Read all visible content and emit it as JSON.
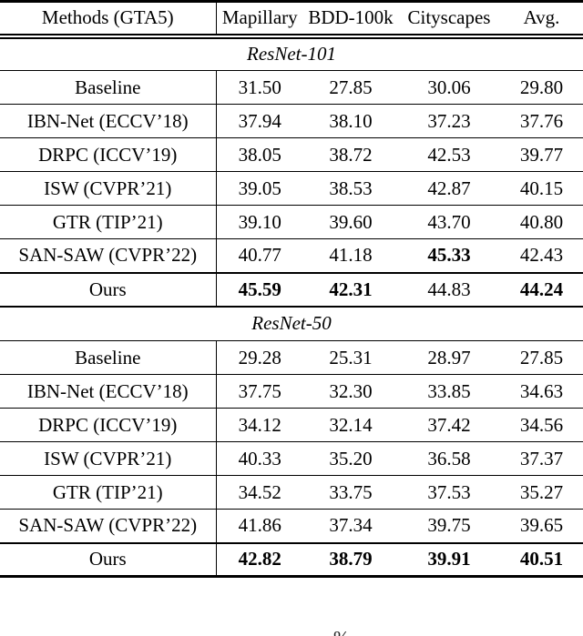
{
  "table": {
    "header": {
      "method_col": "Methods (GTA5)",
      "columns": [
        "Mapillary",
        "BDD-100k",
        "Cityscapes",
        "Avg."
      ]
    },
    "sections": [
      {
        "title": "ResNet-101",
        "rows": [
          {
            "method": "Baseline",
            "values": [
              "31.50",
              "27.85",
              "30.06",
              "29.80"
            ],
            "bold": [
              0,
              0,
              0,
              0
            ]
          },
          {
            "method": "IBN-Net (ECCV’18)",
            "values": [
              "37.94",
              "38.10",
              "37.23",
              "37.76"
            ],
            "bold": [
              0,
              0,
              0,
              0
            ]
          },
          {
            "method": "DRPC (ICCV’19)",
            "values": [
              "38.05",
              "38.72",
              "42.53",
              "39.77"
            ],
            "bold": [
              0,
              0,
              0,
              0
            ]
          },
          {
            "method": "ISW (CVPR’21)",
            "values": [
              "39.05",
              "38.53",
              "42.87",
              "40.15"
            ],
            "bold": [
              0,
              0,
              0,
              0
            ]
          },
          {
            "method": "GTR (TIP’21)",
            "values": [
              "39.10",
              "39.60",
              "43.70",
              "40.80"
            ],
            "bold": [
              0,
              0,
              0,
              0
            ]
          },
          {
            "method": "SAN-SAW (CVPR’22)",
            "values": [
              "40.77",
              "41.18",
              "45.33",
              "42.43"
            ],
            "bold": [
              0,
              0,
              1,
              0
            ]
          },
          {
            "method": "Ours",
            "values": [
              "45.59",
              "42.31",
              "44.83",
              "44.24"
            ],
            "bold": [
              1,
              1,
              0,
              1
            ]
          }
        ]
      },
      {
        "title": "ResNet-50",
        "rows": [
          {
            "method": "Baseline",
            "values": [
              "29.28",
              "25.31",
              "28.97",
              "27.85"
            ],
            "bold": [
              0,
              0,
              0,
              0
            ]
          },
          {
            "method": "IBN-Net (ECCV’18)",
            "values": [
              "37.75",
              "32.30",
              "33.85",
              "34.63"
            ],
            "bold": [
              0,
              0,
              0,
              0
            ]
          },
          {
            "method": "DRPC (ICCV’19)",
            "values": [
              "34.12",
              "32.14",
              "37.42",
              "34.56"
            ],
            "bold": [
              0,
              0,
              0,
              0
            ]
          },
          {
            "method": "ISW (CVPR’21)",
            "values": [
              "40.33",
              "35.20",
              "36.58",
              "37.37"
            ],
            "bold": [
              0,
              0,
              0,
              0
            ]
          },
          {
            "method": "GTR (TIP’21)",
            "values": [
              "34.52",
              "33.75",
              "37.53",
              "35.27"
            ],
            "bold": [
              0,
              0,
              0,
              0
            ]
          },
          {
            "method": "SAN-SAW (CVPR’22)",
            "values": [
              "41.86",
              "37.34",
              "39.75",
              "39.65"
            ],
            "bold": [
              0,
              0,
              0,
              0
            ]
          },
          {
            "method": "Ours",
            "values": [
              "42.82",
              "38.79",
              "39.91",
              "40.51"
            ],
            "bold": [
              1,
              1,
              1,
              1
            ]
          }
        ]
      }
    ]
  },
  "caption_fragment": "%"
}
